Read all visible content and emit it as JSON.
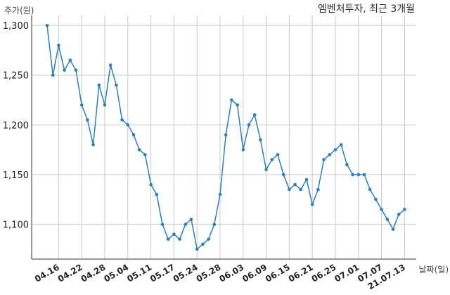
{
  "colors": {
    "line": "#2e7fb8",
    "grid": "#c8c8c8",
    "axis": "#333333",
    "text": "#222222"
  },
  "chart_data": {
    "type": "line",
    "title": "엠벤처투자, 최근 3개월",
    "ylabel": "주가(원)",
    "xlabel": "날짜(일)",
    "ylim": [
      1065,
      1310
    ],
    "yticks": [
      1100,
      1150,
      1200,
      1250,
      1300
    ],
    "ytick_labels": [
      "1,100",
      "1,150",
      "1,200",
      "1,250",
      "1,300"
    ],
    "xtick_labels": [
      "04.16",
      "04.22",
      "04.28",
      "05.04",
      "05.11",
      "05.17",
      "05.24",
      "05.28",
      "06.03",
      "06.09",
      "06.15",
      "06.21",
      "06.25",
      "07.01",
      "07.07",
      "21.07.13"
    ],
    "xtick_index": [
      2,
      6,
      10,
      14,
      18,
      22,
      26,
      30,
      34,
      38,
      42,
      46,
      50,
      54,
      58,
      62
    ],
    "grid": true,
    "series": [
      {
        "values": [
          1300,
          1250,
          1280,
          1255,
          1265,
          1255,
          1220,
          1205,
          1180,
          1240,
          1220,
          1260,
          1240,
          1205,
          1200,
          1190,
          1175,
          1170,
          1140,
          1130,
          1100,
          1085,
          1090,
          1085,
          1100,
          1105,
          1075,
          1080,
          1085,
          1100,
          1130,
          1190,
          1225,
          1220,
          1175,
          1200,
          1210,
          1185,
          1155,
          1165,
          1170,
          1150,
          1135,
          1140,
          1135,
          1145,
          1120,
          1135,
          1165,
          1170,
          1175,
          1180,
          1160,
          1150,
          1150,
          1150,
          1135,
          1125,
          1115,
          1105,
          1095,
          1110,
          1115
        ]
      }
    ]
  }
}
